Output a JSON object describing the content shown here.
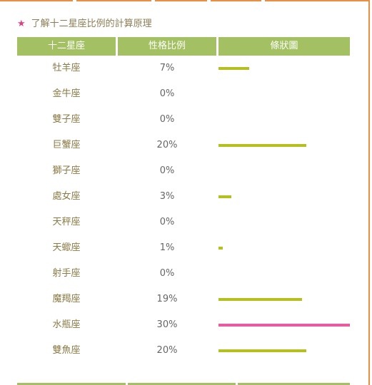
{
  "title": "了解十二星座比例的計算原理",
  "colors": {
    "accent_orange": "#e98f43",
    "header_green": "#a3c162",
    "bar_olive": "#b5bf1d",
    "bar_pink": "#e95a9e",
    "star_pink": "#e0407f"
  },
  "table": {
    "headers": [
      "十二星座",
      "性格比例",
      "條狀圖"
    ],
    "rows": [
      {
        "sign": "牡羊座",
        "percent_label": "7%",
        "value": 7
      },
      {
        "sign": "金牛座",
        "percent_label": "0%",
        "value": 0
      },
      {
        "sign": "雙子座",
        "percent_label": "0%",
        "value": 0
      },
      {
        "sign": "巨蟹座",
        "percent_label": "20%",
        "value": 20
      },
      {
        "sign": "獅子座",
        "percent_label": "0%",
        "value": 0
      },
      {
        "sign": "處女座",
        "percent_label": "3%",
        "value": 3
      },
      {
        "sign": "天秤座",
        "percent_label": "0%",
        "value": 0
      },
      {
        "sign": "天蠍座",
        "percent_label": "1%",
        "value": 1
      },
      {
        "sign": "射手座",
        "percent_label": "0%",
        "value": 0
      },
      {
        "sign": "魔羯座",
        "percent_label": "19%",
        "value": 19
      },
      {
        "sign": "水瓶座",
        "percent_label": "30%",
        "value": 30
      },
      {
        "sign": "雙魚座",
        "percent_label": "20%",
        "value": 20
      }
    ]
  }
}
